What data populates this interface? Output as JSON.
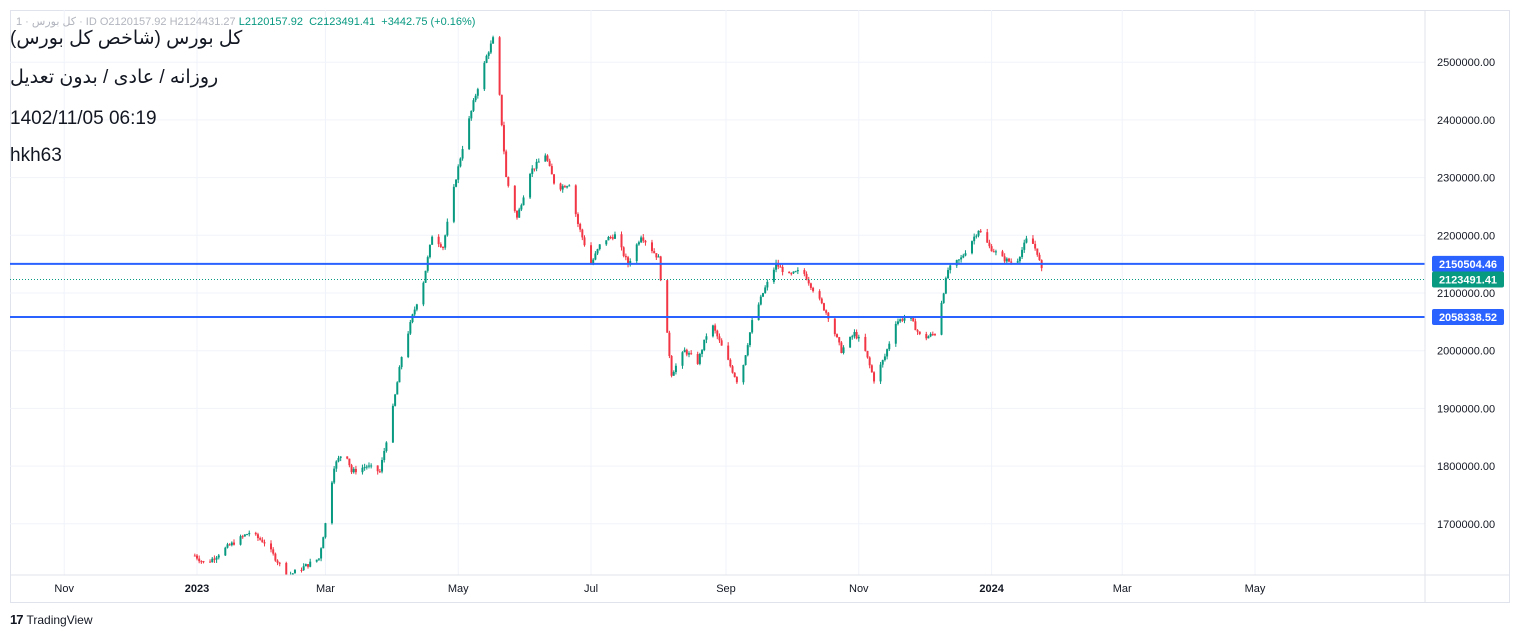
{
  "header": {
    "title": "کل بورس (شاخص کل بورس)",
    "subtitle": "روزانه / عادی / بدون تعدیل",
    "datetime": "1402/11/05 06:19",
    "author": "hkh63"
  },
  "ohlc": {
    "prefix": "کل بورس · 1 · ID",
    "open": "O2120157.92",
    "high": "H2124431.27",
    "low": "L2120157.92",
    "close": "C2123491.41",
    "change": "+3442.75 (+0.16%)"
  },
  "price_labels": {
    "level_1": "2150504.46",
    "last": "2123491.41",
    "level_2": "2058338.52"
  },
  "branding": {
    "logo": "17",
    "name": "TradingView"
  },
  "colors": {
    "up": "#089981",
    "down": "#f23645",
    "level_line": "#2962ff",
    "last_label": "#089981"
  },
  "chart_data": {
    "type": "candlestick",
    "y_ticks": [
      1700000,
      1800000,
      1900000,
      2000000,
      2100000,
      2200000,
      2300000,
      2400000,
      2500000
    ],
    "y_tick_labels": [
      "1700000.00",
      "1800000.00",
      "1900000.00",
      "2000000.00",
      "2100000.00",
      "2200000.00",
      "2300000.00",
      "2400000.00",
      "2500000.00"
    ],
    "x_ticks": [
      {
        "label": "Nov",
        "date": "2022-11-01"
      },
      {
        "label": "2023",
        "date": "2023-01-01"
      },
      {
        "label": "Mar",
        "date": "2023-03-01"
      },
      {
        "label": "May",
        "date": "2023-05-01"
      },
      {
        "label": "Jul",
        "date": "2023-07-01"
      },
      {
        "label": "Sep",
        "date": "2023-09-01"
      },
      {
        "label": "Nov",
        "date": "2023-11-01"
      },
      {
        "label": "2024",
        "date": "2024-01-01"
      },
      {
        "label": "Mar",
        "date": "2024-03-01"
      },
      {
        "label": "May",
        "date": "2024-05-01"
      }
    ],
    "horizontal_levels": [
      2150504.46,
      2058338.52
    ],
    "last_price": 2123491.41,
    "path": [
      [
        "2022-12-31",
        1645000
      ],
      [
        "2023-01-05",
        1630000
      ],
      [
        "2023-01-15",
        1660000
      ],
      [
        "2023-01-25",
        1685000
      ],
      [
        "2023-02-01",
        1668000
      ],
      [
        "2023-02-07",
        1635000
      ],
      [
        "2023-02-12",
        1610000
      ],
      [
        "2023-02-26",
        1640000
      ],
      [
        "2023-03-01",
        1700000
      ],
      [
        "2023-03-05",
        1800000
      ],
      [
        "2023-03-10",
        1830000
      ],
      [
        "2023-03-13",
        1790000
      ],
      [
        "2023-03-20",
        1800000
      ],
      [
        "2023-03-26",
        1790000
      ],
      [
        "2023-04-01",
        1900000
      ],
      [
        "2023-04-05",
        1990000
      ],
      [
        "2023-04-10",
        2060000
      ],
      [
        "2023-04-15",
        2120000
      ],
      [
        "2023-04-19",
        2200000
      ],
      [
        "2023-04-24",
        2180000
      ],
      [
        "2023-04-30",
        2300000
      ],
      [
        "2023-05-04",
        2370000
      ],
      [
        "2023-05-08",
        2430000
      ],
      [
        "2023-05-14",
        2510000
      ],
      [
        "2023-05-18",
        2550000
      ],
      [
        "2023-05-20",
        2440000
      ],
      [
        "2023-05-23",
        2300000
      ],
      [
        "2023-05-28",
        2230000
      ],
      [
        "2023-06-03",
        2310000
      ],
      [
        "2023-06-10",
        2340000
      ],
      [
        "2023-06-15",
        2280000
      ],
      [
        "2023-06-21",
        2290000
      ],
      [
        "2023-06-25",
        2220000
      ],
      [
        "2023-07-01",
        2150000
      ],
      [
        "2023-07-06",
        2190000
      ],
      [
        "2023-07-12",
        2200000
      ],
      [
        "2023-07-18",
        2150000
      ],
      [
        "2023-07-24",
        2200000
      ],
      [
        "2023-08-01",
        2160000
      ],
      [
        "2023-08-04",
        2060000
      ],
      [
        "2023-08-07",
        1960000
      ],
      [
        "2023-08-13",
        2000000
      ],
      [
        "2023-08-19",
        1980000
      ],
      [
        "2023-08-25",
        2050000
      ],
      [
        "2023-09-01",
        1990000
      ],
      [
        "2023-09-07",
        1940000
      ],
      [
        "2023-09-13",
        2050000
      ],
      [
        "2023-09-18",
        2100000
      ],
      [
        "2023-09-24",
        2150000
      ],
      [
        "2023-09-30",
        2130000
      ],
      [
        "2023-10-06",
        2140000
      ],
      [
        "2023-10-12",
        2100000
      ],
      [
        "2023-10-18",
        2060000
      ],
      [
        "2023-10-24",
        2000000
      ],
      [
        "2023-10-30",
        2030000
      ],
      [
        "2023-11-03",
        2010000
      ],
      [
        "2023-11-08",
        1950000
      ],
      [
        "2023-11-13",
        1990000
      ],
      [
        "2023-11-18",
        2050000
      ],
      [
        "2023-11-24",
        2060000
      ],
      [
        "2023-11-30",
        2020000
      ],
      [
        "2023-12-06",
        2030000
      ],
      [
        "2023-12-12",
        2140000
      ],
      [
        "2023-12-18",
        2160000
      ],
      [
        "2023-12-26",
        2210000
      ],
      [
        "2023-12-31",
        2180000
      ],
      [
        "2024-01-06",
        2160000
      ],
      [
        "2024-01-12",
        2150000
      ],
      [
        "2024-01-18",
        2200000
      ],
      [
        "2024-01-22",
        2170000
      ],
      [
        "2024-01-25",
        2123491
      ]
    ]
  }
}
